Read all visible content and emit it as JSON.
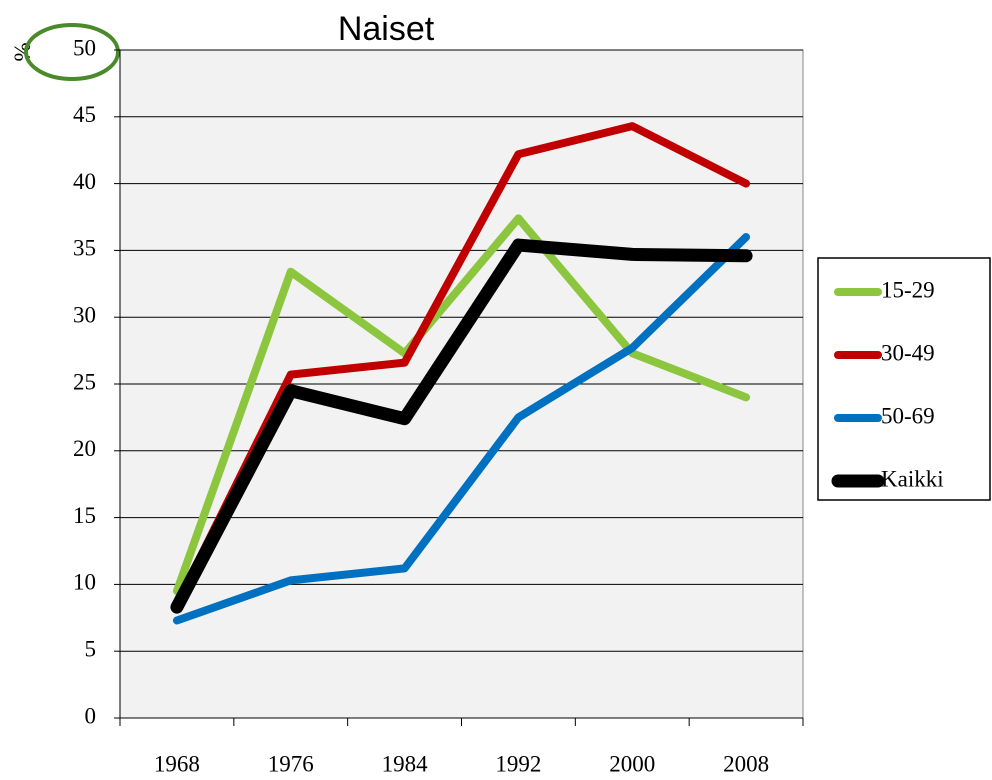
{
  "chart_data": {
    "type": "line",
    "title": "Naiset",
    "y_label": "%",
    "categories": [
      "1968",
      "1976",
      "1984",
      "1992",
      "2000",
      "2008"
    ],
    "series": [
      {
        "name": "15-29",
        "color": "#8cc63e",
        "values": [
          9.5,
          33.4,
          27.3,
          37.4,
          27.3,
          24
        ]
      },
      {
        "name": "30-49",
        "color": "#c00000",
        "values": [
          8.5,
          25.7,
          26.6,
          42.2,
          44.3,
          40
        ]
      },
      {
        "name": "50-69",
        "color": "#0070c0",
        "values": [
          7.3,
          10.3,
          11.2,
          22.5,
          27.7,
          36
        ]
      },
      {
        "name": "Kaikki",
        "color": "#000000",
        "values": [
          8.3,
          24.5,
          22.4,
          35.4,
          34.7,
          34.6
        ]
      }
    ],
    "ylim": [
      0,
      50
    ],
    "yticks": [
      0,
      5,
      10,
      15,
      20,
      25,
      30,
      35,
      40,
      45,
      50
    ],
    "grid": true,
    "legend": "right"
  }
}
